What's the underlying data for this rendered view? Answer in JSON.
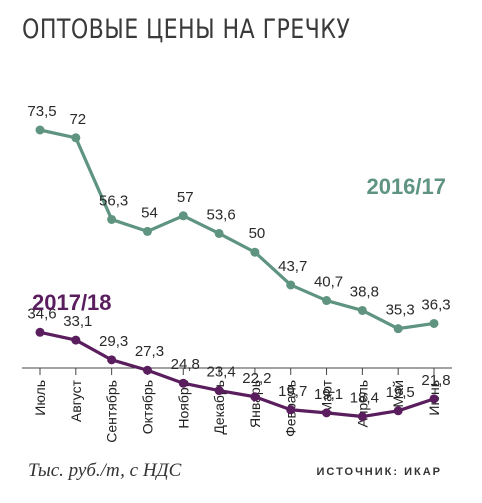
{
  "chart_data": {
    "type": "line",
    "title": "ОПТОВЫЕ ЦЕНЫ НА ГРЕЧКУ",
    "categories": [
      "Июль",
      "Август",
      "Сентябрь",
      "Октябрь",
      "Ноябрь",
      "Декабрь",
      "Январь",
      "Февраль",
      "Март",
      "Апрель",
      "Май",
      "Июнь"
    ],
    "series": [
      {
        "name": "2016/17",
        "color": "#5e9480",
        "values": [
          73.5,
          72,
          56.3,
          54,
          57,
          53.6,
          50,
          43.7,
          40.7,
          38.8,
          35.3,
          36.3
        ],
        "labels": [
          "73,5",
          "72",
          "56,3",
          "54",
          "57",
          "53,6",
          "50",
          "43,7",
          "40,7",
          "38,8",
          "35,3",
          "36,3"
        ]
      },
      {
        "name": "2017/18",
        "color": "#5a1e5e",
        "values": [
          34.6,
          33.1,
          29.3,
          27.3,
          24.8,
          23.4,
          22.2,
          19.7,
          19.1,
          18.4,
          19.5,
          21.8
        ],
        "labels": [
          "34,6",
          "33,1",
          "29,3",
          "27,3",
          "24,8",
          "23,4",
          "22,2",
          "19,7",
          "19,1",
          "18,4",
          "19,5",
          "21,8"
        ]
      }
    ],
    "ylim": [
      5,
      85
    ],
    "grid": false,
    "legend": "inline",
    "unit_note": "Тыс. руб./т, с НДС",
    "source_note": "ИСТОЧНИК: ИКАР"
  }
}
